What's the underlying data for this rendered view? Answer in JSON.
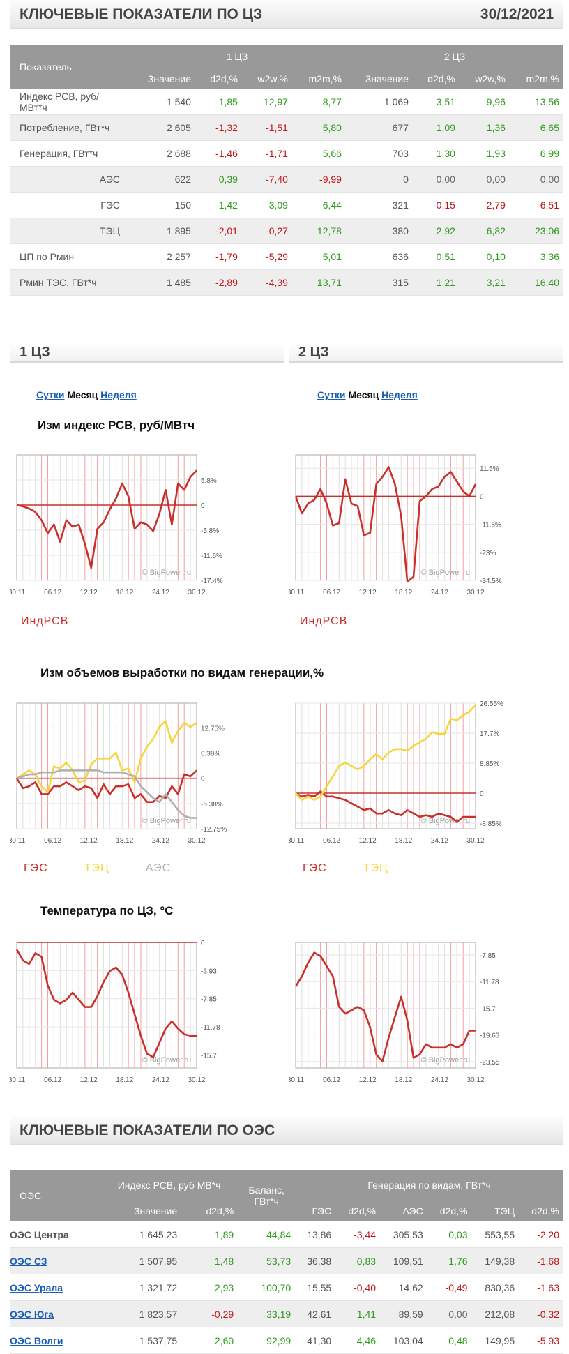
{
  "header": {
    "title": "КЛЮЧЕВЫЕ ПОКАЗАТЕЛИ ПО ЦЗ",
    "date": "30/12/2021"
  },
  "kp_table": {
    "col_indicator": "Показатель",
    "zone1": "1 ЦЗ",
    "zone2": "2 ЦЗ",
    "sub": [
      "Значение",
      "d2d,%",
      "w2w,%",
      "m2m,%"
    ],
    "rows": [
      {
        "name": "Индекс РСВ, руб/МВт*ч",
        "sub": false,
        "v": [
          "1 540",
          "1,85",
          "12,97",
          "8,77",
          "1 069",
          "3,51",
          "9,96",
          "13,56"
        ]
      },
      {
        "name": "Потребление, ГВт*ч",
        "sub": false,
        "v": [
          "2 605",
          "-1,32",
          "-1,51",
          "5,80",
          "677",
          "1,09",
          "1,36",
          "6,65"
        ]
      },
      {
        "name": "Генерация, ГВт*ч",
        "sub": false,
        "v": [
          "2 688",
          "-1,46",
          "-1,71",
          "5,66",
          "703",
          "1,30",
          "1,93",
          "6,99"
        ]
      },
      {
        "name": "АЭС",
        "sub": true,
        "v": [
          "622",
          "0,39",
          "-7,40",
          "-9,99",
          "0",
          "0,00",
          "0,00",
          "0,00"
        ]
      },
      {
        "name": "ГЭС",
        "sub": true,
        "v": [
          "150",
          "1,42",
          "3,09",
          "6,44",
          "321",
          "-0,15",
          "-2,79",
          "-6,51"
        ]
      },
      {
        "name": "ТЭЦ",
        "sub": true,
        "v": [
          "1 895",
          "-2,01",
          "-0,27",
          "12,78",
          "380",
          "2,92",
          "6,82",
          "23,06"
        ]
      },
      {
        "name": "ЦП по Рмин",
        "sub": false,
        "v": [
          "2 257",
          "-1,79",
          "-5,29",
          "5,01",
          "636",
          "0,51",
          "0,10",
          "3,36"
        ]
      },
      {
        "name": "Рмин ТЭС, ГВт*ч",
        "sub": false,
        "v": [
          "1 485",
          "-2,89",
          "-4,39",
          "13,71",
          "315",
          "1,21",
          "3,21",
          "16,40"
        ]
      }
    ]
  },
  "zones": {
    "z1": "1 ЦЗ",
    "z2": "2 ЦЗ"
  },
  "tabs": {
    "day": "Сутки",
    "month": "Месяц",
    "week": "Неделя"
  },
  "chart_titles": {
    "price": "Изм индекс РСВ, руб/МВтч",
    "gen": "Изм объемов выработки по видам генерации,%",
    "temp": "Температура по ЦЗ, °C"
  },
  "watermark": "© BigPower.ru",
  "colors": {
    "red": "#c9302c",
    "yellow": "#f5d63d",
    "gray": "#b0b0b0",
    "pos": "#2e9a1c",
    "neg": "#c21616"
  },
  "chart_data": [
    {
      "id": "price1",
      "type": "line",
      "title": "Изм индекс РСВ, руб/МВтч",
      "ylim": [
        -17.4,
        11.6
      ],
      "xticks": [
        "30.11",
        "06.12",
        "12.12",
        "18.12",
        "24.12",
        "30.12"
      ],
      "yticks": [
        {
          "v": 5.8,
          "t": "5.8%"
        },
        {
          "v": 0,
          "t": "0"
        },
        {
          "v": -5.8,
          "t": "-5.8%"
        },
        {
          "v": -11.6,
          "t": "-11.6%"
        },
        {
          "v": -17.4,
          "t": "-17.4%"
        }
      ],
      "series": [
        {
          "name": "ИндРСВ",
          "color": "red",
          "values": [
            0,
            -0.3,
            -0.8,
            -1.6,
            -3.5,
            -6.5,
            -4.5,
            -8.5,
            -3.5,
            -5,
            -4.5,
            -9,
            -14.5,
            -5.5,
            -4,
            -1,
            1.5,
            5,
            2,
            -5.5,
            -4,
            -4.5,
            -6,
            -2,
            3.5,
            -4.5,
            5,
            3.5,
            6.5,
            8
          ]
        }
      ]
    },
    {
      "id": "price2",
      "type": "line",
      "title": "Изм индекс РСВ, руб/МВтч",
      "ylim": [
        -34.5,
        17
      ],
      "xticks": [
        "30.11",
        "06.12",
        "12.12",
        "18.12",
        "24.12",
        "30.12"
      ],
      "yticks": [
        {
          "v": 11.5,
          "t": "11.5%"
        },
        {
          "v": 0,
          "t": "0"
        },
        {
          "v": -11.5,
          "t": "-11.5%"
        },
        {
          "v": -23,
          "t": "-23%"
        },
        {
          "v": -34.5,
          "t": "-34.5%"
        }
      ],
      "series": [
        {
          "name": "ИндРСВ",
          "color": "red",
          "values": [
            0,
            -7,
            -3,
            -1.5,
            3,
            -3,
            -12,
            -11,
            7,
            -3,
            -4,
            -16,
            -15,
            5,
            8,
            12,
            5,
            -8,
            -35,
            -33,
            -2,
            0,
            3,
            4,
            8,
            10,
            6,
            2,
            0,
            5
          ]
        }
      ]
    },
    {
      "id": "gen1",
      "type": "line",
      "title": "Изм объемов выработки по видам генерации,%",
      "ylim": [
        -12.75,
        19
      ],
      "xticks": [
        "30.11",
        "06.12",
        "12.12",
        "18.12",
        "24.12",
        "30.12"
      ],
      "yticks": [
        {
          "v": 12.75,
          "t": "12.75%"
        },
        {
          "v": 6.38,
          "t": "6.38%"
        },
        {
          "v": 0,
          "t": "0"
        },
        {
          "v": -6.38,
          "t": "-6.38%"
        },
        {
          "v": -12.75,
          "t": "-12.75%"
        }
      ],
      "series": [
        {
          "name": "ГЭС",
          "color": "red",
          "values": [
            0,
            -2.5,
            -2,
            -1,
            -4,
            -4,
            -2,
            -2,
            -1,
            -2,
            -3,
            -2,
            -2.5,
            -5,
            -1.5,
            -4,
            -2,
            -2,
            -1.5,
            -5,
            -4,
            -6,
            -6,
            -4.5,
            -5,
            -2,
            -4,
            1,
            0.5,
            2
          ]
        },
        {
          "name": "ТЭЦ",
          "color": "yellow",
          "values": [
            0,
            1,
            2,
            1,
            -2,
            -3.5,
            3,
            2.5,
            4,
            2,
            -1,
            -0.5,
            3.5,
            5,
            5,
            5,
            6.5,
            2,
            2.5,
            -1,
            5,
            8,
            10,
            13,
            14.5,
            9,
            12,
            14,
            13,
            14
          ]
        },
        {
          "name": "АЭС",
          "color": "gray",
          "values": [
            0,
            0.5,
            1,
            1,
            1.5,
            1.5,
            1.5,
            2,
            2,
            2,
            2,
            2,
            2,
            2,
            1.5,
            1.5,
            1.5,
            1.5,
            1,
            0.5,
            -2,
            -3.5,
            -5,
            -6,
            -4,
            -6,
            -8,
            -9.5,
            -10,
            -10
          ]
        }
      ]
    },
    {
      "id": "gen2",
      "type": "line",
      "title": "Изм объемов выработки по видам генерации,%",
      "ylim": [
        -10.5,
        26.55
      ],
      "xticks": [
        "30.11",
        "06.12",
        "12.12",
        "18.12",
        "24.12",
        "30.12"
      ],
      "yticks": [
        {
          "v": 26.55,
          "t": "26.55%"
        },
        {
          "v": 17.7,
          "t": "17.7%"
        },
        {
          "v": 8.85,
          "t": "8.85%"
        },
        {
          "v": 0,
          "t": "0"
        },
        {
          "v": -8.85,
          "t": "-8.85%"
        }
      ],
      "series": [
        {
          "name": "ГЭС",
          "color": "red",
          "values": [
            0,
            -1,
            -0.5,
            -1,
            0.5,
            -1,
            -1,
            -1.5,
            -2,
            -3,
            -4,
            -5,
            -4.5,
            -6,
            -6,
            -5,
            -6,
            -6.5,
            -5,
            -6,
            -7,
            -6.5,
            -7,
            -6,
            -6.5,
            -7,
            -8.5,
            -7,
            -7,
            -7
          ]
        },
        {
          "name": "ТЭЦ",
          "color": "yellow",
          "values": [
            0,
            -2,
            -1,
            -2,
            -1,
            2,
            5,
            8,
            9,
            8,
            7,
            8,
            10,
            11.5,
            10,
            12,
            13,
            13,
            12.5,
            14,
            15,
            16,
            18,
            17.5,
            17.5,
            22,
            21.5,
            23,
            24,
            26
          ]
        }
      ]
    },
    {
      "id": "temp1",
      "type": "line",
      "title": "Температура по ЦЗ, °C",
      "ylim": [
        -17.5,
        0
      ],
      "xticks": [
        "30.11",
        "06.12",
        "12.12",
        "18.12",
        "24.12",
        "30.12"
      ],
      "yticks": [
        {
          "v": 0,
          "t": "0"
        },
        {
          "v": -3.93,
          "t": "-3.93"
        },
        {
          "v": -7.85,
          "t": "-7.85"
        },
        {
          "v": -11.78,
          "t": "-11.78"
        },
        {
          "v": -15.7,
          "t": "-15.7"
        }
      ],
      "series": [
        {
          "name": "zero",
          "color": "red",
          "values": [
            0,
            0,
            0,
            0,
            0,
            0,
            0,
            0,
            0,
            0,
            0,
            0,
            0,
            0,
            0,
            0,
            0,
            0,
            0,
            0,
            0,
            0,
            0,
            0,
            0,
            0,
            0,
            0,
            0,
            0
          ]
        },
        {
          "name": "temp",
          "color": "red",
          "values": [
            -1,
            -2.5,
            -3,
            -1.5,
            -2,
            -6,
            -8,
            -8.5,
            -8,
            -7,
            -8,
            -9,
            -9,
            -7.5,
            -5.5,
            -4,
            -3.5,
            -4.5,
            -7,
            -10,
            -13,
            -15.5,
            -16,
            -14,
            -12,
            -11,
            -12,
            -12.8,
            -13,
            -13
          ]
        }
      ]
    },
    {
      "id": "temp2",
      "type": "line",
      "title": "Температура по ЦЗ, °C",
      "ylim": [
        -24.5,
        -6
      ],
      "xticks": [
        "30.11",
        "06.12",
        "12.12",
        "18.12",
        "24.12",
        "30.12"
      ],
      "yticks": [
        {
          "v": -7.85,
          "t": "-7.85"
        },
        {
          "v": -11.78,
          "t": "-11.78"
        },
        {
          "v": -15.7,
          "t": "-15.7"
        },
        {
          "v": -19.63,
          "t": "-19.63"
        },
        {
          "v": -23.55,
          "t": "-23.55"
        }
      ],
      "series": [
        {
          "name": "temp",
          "color": "red",
          "values": [
            -12.5,
            -11,
            -9,
            -7.5,
            -8,
            -9.5,
            -11,
            -15.5,
            -16.5,
            -16,
            -15.5,
            -16,
            -18.5,
            -22.5,
            -23.5,
            -20,
            -17,
            -14,
            -17.5,
            -23,
            -22.5,
            -21,
            -21.5,
            -21.5,
            -21.5,
            -21,
            -21.5,
            -21,
            -19,
            -19
          ]
        }
      ]
    }
  ],
  "legends": {
    "price1": [
      {
        "t": "ИндРСВ",
        "c": "red"
      }
    ],
    "price2": [
      {
        "t": "ИндРСВ",
        "c": "red"
      }
    ],
    "gen1": [
      {
        "t": "ГЭС",
        "c": "red"
      },
      {
        "t": "ТЭЦ",
        "c": "yellow"
      },
      {
        "t": "АЭС",
        "c": "gray"
      }
    ],
    "gen2": [
      {
        "t": "ГЭС",
        "c": "red"
      },
      {
        "t": "ТЭЦ",
        "c": "yellow"
      }
    ]
  },
  "oes": {
    "title": "КЛЮЧЕВЫЕ ПОКАЗАТЕЛИ ПО ОЭС",
    "h_oes": "ОЭС",
    "h_index": "Индекс РСВ, руб МВ*ч",
    "h_balance": "Баланс, ГВт*ч",
    "h_gen": "Генерация по видам, ГВт*ч",
    "sub": [
      "Значение",
      "d2d,%",
      "ГЭС",
      "d2d,%",
      "АЭС",
      "d2d,%",
      "ТЭЦ",
      "d2d,%"
    ],
    "rows": [
      {
        "name": "ОЭС Центра",
        "link": false,
        "v": [
          "1 645,23",
          "1,89",
          "44,84",
          "13,86",
          "-3,44",
          "305,53",
          "0,03",
          "553,55",
          "-2,20"
        ]
      },
      {
        "name": "ОЭС СЗ",
        "link": true,
        "v": [
          "1 507,95",
          "1,48",
          "53,73",
          "36,38",
          "0,83",
          "109,51",
          "1,76",
          "149,38",
          "-1,68"
        ]
      },
      {
        "name": "ОЭС Урала",
        "link": true,
        "v": [
          "1 321,72",
          "2,93",
          "100,70",
          "15,55",
          "-0,40",
          "14,62",
          "-0,49",
          "830,36",
          "-1,63"
        ]
      },
      {
        "name": "ОЭС Юга",
        "link": true,
        "v": [
          "1 823,57",
          "-0,29",
          "33,19",
          "42,61",
          "1,41",
          "89,59",
          "0,00",
          "212,08",
          "-0,32"
        ]
      },
      {
        "name": "ОЭС Волги",
        "link": true,
        "v": [
          "1 537,75",
          "2,60",
          "92,99",
          "41,30",
          "4,46",
          "103,04",
          "0,48",
          "149,95",
          "-5,93"
        ]
      }
    ]
  }
}
